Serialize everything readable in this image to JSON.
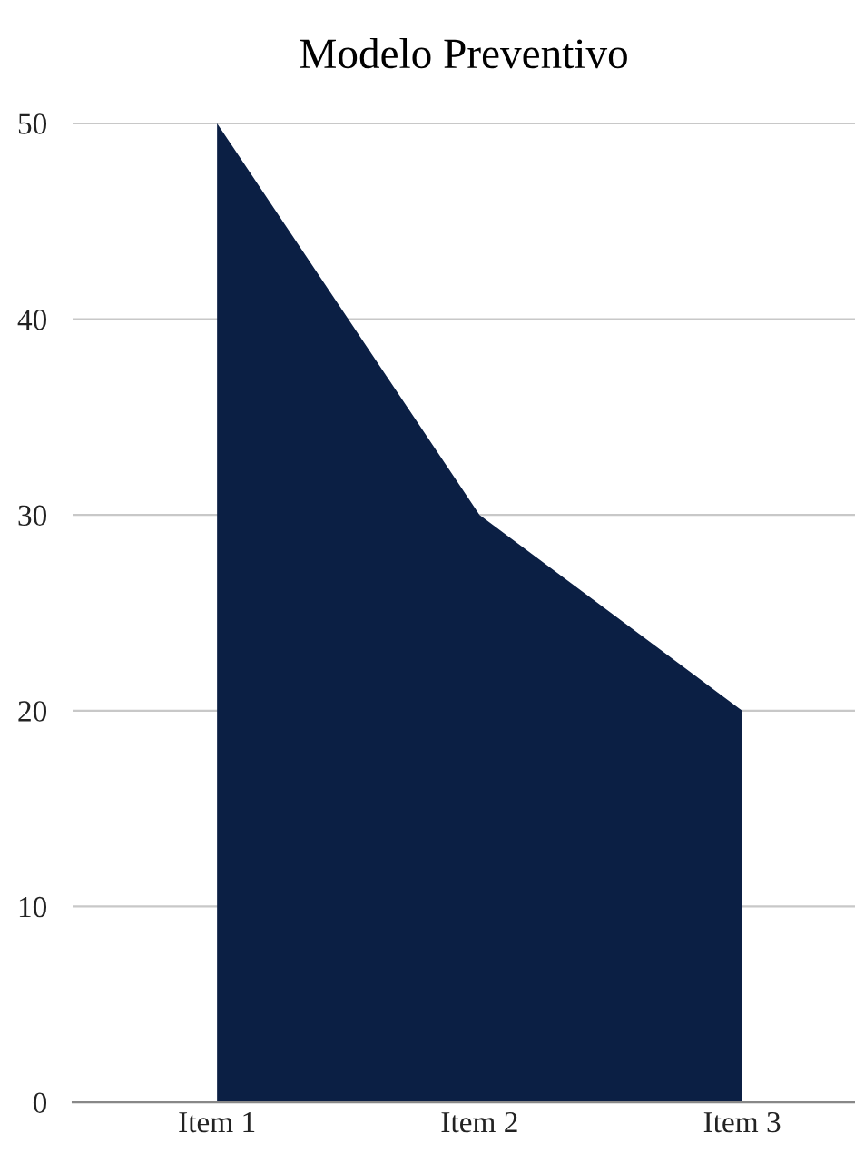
{
  "chart_data": {
    "type": "area",
    "title": "Modelo Preventivo",
    "categories": [
      "Item 1",
      "Item 2",
      "Item 3"
    ],
    "series": [
      {
        "color": "#0b1f44",
        "values": [
          50,
          30,
          20
        ]
      }
    ],
    "ylim": [
      0,
      50
    ],
    "yticks": [
      0,
      10,
      20,
      30,
      40,
      50
    ],
    "grid": "y"
  }
}
